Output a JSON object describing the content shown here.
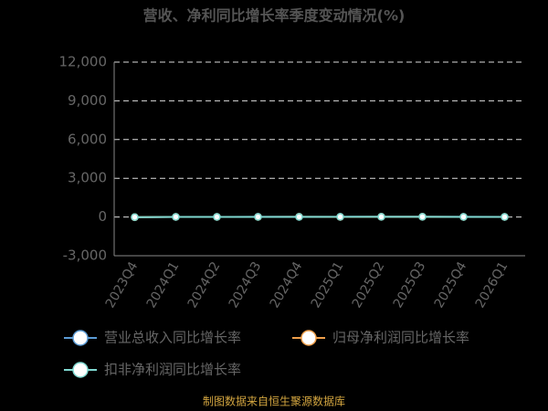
{
  "chart_data": {
    "type": "line",
    "title": "营收、净利同比增长率季度变动情况(%)",
    "categories": [
      "2023Q4",
      "2024Q1",
      "2024Q2",
      "2024Q3",
      "2024Q4",
      "2025Q1",
      "2025Q2",
      "2025Q3",
      "2025Q4",
      "2026Q1"
    ],
    "series": [
      {
        "name": "营业总收入同比增长率",
        "color": "#5b9bd5",
        "values": [
          -20,
          10,
          8,
          12,
          15,
          10,
          18,
          20,
          12,
          8
        ]
      },
      {
        "name": "归母净利润同比增长率",
        "color": "#f0a04b",
        "values": [
          -15,
          5,
          10,
          6,
          12,
          8,
          14,
          15,
          10,
          6
        ]
      },
      {
        "name": "扣非净利润同比增长率",
        "color": "#7fd8d0",
        "values": [
          -10,
          8,
          6,
          10,
          10,
          12,
          15,
          18,
          8,
          4
        ]
      }
    ],
    "ylim": [
      -3000,
      12000
    ],
    "yticks": [
      {
        "value": -3000,
        "label": "-3,000"
      },
      0,
      {
        "value": 3000,
        "label": "3,000"
      },
      {
        "value": 6000,
        "label": "6,000"
      },
      {
        "value": 9000,
        "label": "9,000"
      },
      {
        "value": 12000,
        "label": "12,000"
      }
    ],
    "grid": true,
    "source": "制图数据来自恒生聚源数据库"
  }
}
